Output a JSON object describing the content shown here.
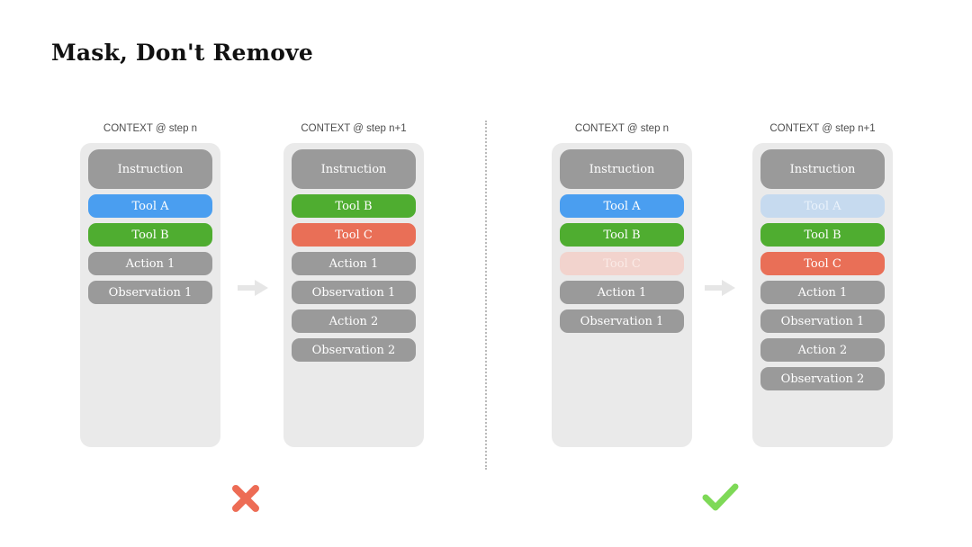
{
  "title": "Mask, Don't Remove",
  "panels": [
    {
      "header": "CONTEXT @ step n",
      "boxes": [
        {
          "label": "Instruction",
          "type": "instruction"
        },
        {
          "label": "Tool A",
          "type": "blue"
        },
        {
          "label": "Tool B",
          "type": "green"
        },
        {
          "label": "Action 1",
          "type": "gray"
        },
        {
          "label": "Observation 1",
          "type": "gray"
        }
      ]
    },
    {
      "header": "CONTEXT @ step n+1",
      "boxes": [
        {
          "label": "Instruction",
          "type": "instruction"
        },
        {
          "label": "Tool B",
          "type": "green"
        },
        {
          "label": "Tool C",
          "type": "red"
        },
        {
          "label": "Action 1",
          "type": "gray"
        },
        {
          "label": "Observation 1",
          "type": "gray"
        },
        {
          "label": "Action 2",
          "type": "gray"
        },
        {
          "label": "Observation 2",
          "type": "gray"
        }
      ]
    },
    {
      "header": "CONTEXT @ step n",
      "boxes": [
        {
          "label": "Instruction",
          "type": "instruction"
        },
        {
          "label": "Tool A",
          "type": "blue"
        },
        {
          "label": "Tool B",
          "type": "green"
        },
        {
          "label": "Tool C",
          "type": "faded-red"
        },
        {
          "label": "Action 1",
          "type": "gray"
        },
        {
          "label": "Observation 1",
          "type": "gray"
        }
      ]
    },
    {
      "header": "CONTEXT @ step n+1",
      "boxes": [
        {
          "label": "Instruction",
          "type": "instruction"
        },
        {
          "label": "Tool A",
          "type": "faded-blue"
        },
        {
          "label": "Tool B",
          "type": "green"
        },
        {
          "label": "Tool C",
          "type": "red"
        },
        {
          "label": "Action 1",
          "type": "gray"
        },
        {
          "label": "Observation 1",
          "type": "gray"
        },
        {
          "label": "Action 2",
          "type": "gray"
        },
        {
          "label": "Observation 2",
          "type": "gray"
        }
      ]
    }
  ],
  "icons": {
    "wrong_example_mark": "cross-icon",
    "correct_example_mark": "check-icon",
    "transition": "arrow-right-icon",
    "separator": "dotted-vertical-divider"
  },
  "colors": {
    "gray_box": "#9A9A9A",
    "blue_box": "#4A9EF0",
    "green_box": "#4FAD30",
    "red_box": "#E96F57",
    "faded_red_box": "#F2D3CD",
    "faded_blue_box": "#C6DAEF",
    "panel_background": "#EAEAEA",
    "cross_mark": "#ED6C55",
    "check_mark": "#7ED957",
    "arrow": "#E6E6E6",
    "header_text": "#4D4D4D"
  }
}
